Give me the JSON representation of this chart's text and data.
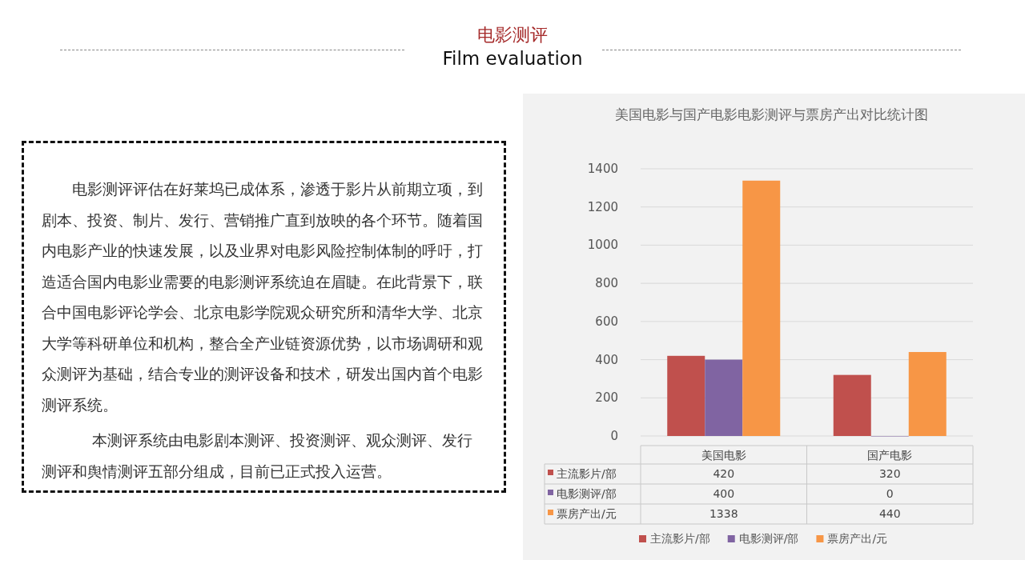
{
  "chart_data": {
    "type": "bar",
    "title": "美国电影与国产电影电影测评与票房产出对比统计图",
    "categories": [
      "美国电影",
      "国产电影"
    ],
    "series": [
      {
        "name": "主流影片/部",
        "color": "#c0504d",
        "values": [
          420,
          320
        ]
      },
      {
        "name": "电影测评/部",
        "color": "#8064a2",
        "values": [
          400,
          0
        ]
      },
      {
        "name": "票房产出/元",
        "color": "#f79646",
        "values": [
          1338,
          440
        ]
      }
    ],
    "ylim": [
      0,
      1400
    ],
    "yticks": [
      0,
      200,
      400,
      600,
      800,
      1000,
      1200,
      1400
    ],
    "grid": "y",
    "data_labels": true,
    "legend": "bottom",
    "annotations": [
      "电影测评",
      "Film evaluation",
      "电影测评评估在好莱坞已成体系，渗透于影片从前期立项，到剧本、投资、制片、发行、营销推广直到放映的各个环节。随着国内电影产业的快速发展，以及业界对电影风险控制体制的呼吁，打造适合国内电影业需要的电影测评系统迫在眉睫。在此背景下，联合中国电影评论学会、北京电影学院观众研究所和清华大学、北京大学等科研单位和机构，整合全产业链资源优势，以市场调研和观众测评为基础，结合专业的测评设备和技术，研发出国内首个电影测评系统。",
      "本测评系统由电影剧本测评、投资测评、观众测评、发行测评和舆情测评五部分组成，目前已正式投入运营。"
    ]
  }
}
